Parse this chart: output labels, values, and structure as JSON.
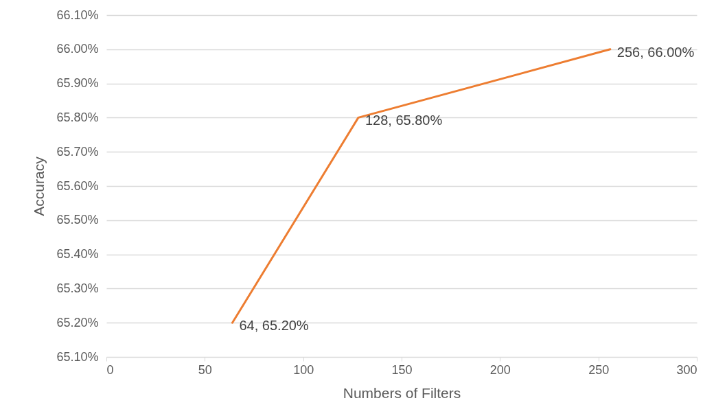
{
  "chart_data": {
    "type": "line",
    "xlabel": "Numbers of Filters",
    "ylabel": "Accuracy",
    "x": [
      64,
      128,
      256
    ],
    "series": [
      {
        "color": "#ed7d31",
        "values": [
          65.2,
          65.8,
          66.0
        ],
        "value_labels": [
          "64, 65.20%",
          "128, 65.80%",
          "256, 66.00%"
        ]
      }
    ],
    "xlim": [
      0,
      300
    ],
    "xticks": [
      0,
      50,
      100,
      150,
      200,
      250,
      300
    ],
    "ylim": [
      65.1,
      66.1
    ],
    "yticks": [
      {
        "value": 65.1,
        "label": "65.10%"
      },
      {
        "value": 65.2,
        "label": "65.20%"
      },
      {
        "value": 65.3,
        "label": "65.30%"
      },
      {
        "value": 65.4,
        "label": "65.40%"
      },
      {
        "value": 65.5,
        "label": "65.50%"
      },
      {
        "value": 65.6,
        "label": "65.60%"
      },
      {
        "value": 65.7,
        "label": "65.70%"
      },
      {
        "value": 65.8,
        "label": "65.80%"
      },
      {
        "value": 65.9,
        "label": "65.90%"
      },
      {
        "value": 66.0,
        "label": "66.00%"
      },
      {
        "value": 66.1,
        "label": "66.10%"
      }
    ],
    "grid": "y",
    "marker": "none",
    "line_style": "solid",
    "legend": false
  }
}
